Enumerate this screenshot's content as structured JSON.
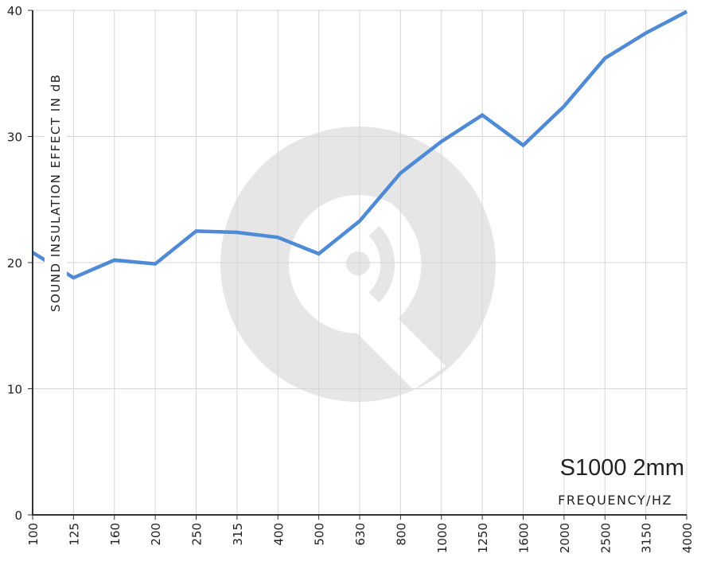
{
  "chart_data": {
    "type": "line",
    "title": "",
    "annotation": "S1000 2mm",
    "xlabel": "FREQUENCY/HZ",
    "ylabel": "SOUND INSULATION EFFECT IN dB",
    "categories": [
      "100",
      "125",
      "160",
      "200",
      "250",
      "315",
      "400",
      "500",
      "630",
      "800",
      "1000",
      "1250",
      "1600",
      "2000",
      "2500",
      "3150",
      "4000"
    ],
    "series": [
      {
        "values": [
          20.8,
          18.8,
          20.2,
          19.9,
          22.5,
          22.4,
          22.0,
          20.7,
          23.3,
          27.1,
          29.6,
          31.7,
          29.3,
          32.4,
          36.2,
          38.2,
          39.9
        ]
      }
    ],
    "ylim": [
      0,
      40
    ],
    "yticks": [
      0,
      10,
      20,
      30,
      40
    ],
    "grid": true,
    "line_color": "#4f8ad6",
    "grid_color": "#d6d6d6",
    "watermark_color": "#e6e6e6"
  }
}
